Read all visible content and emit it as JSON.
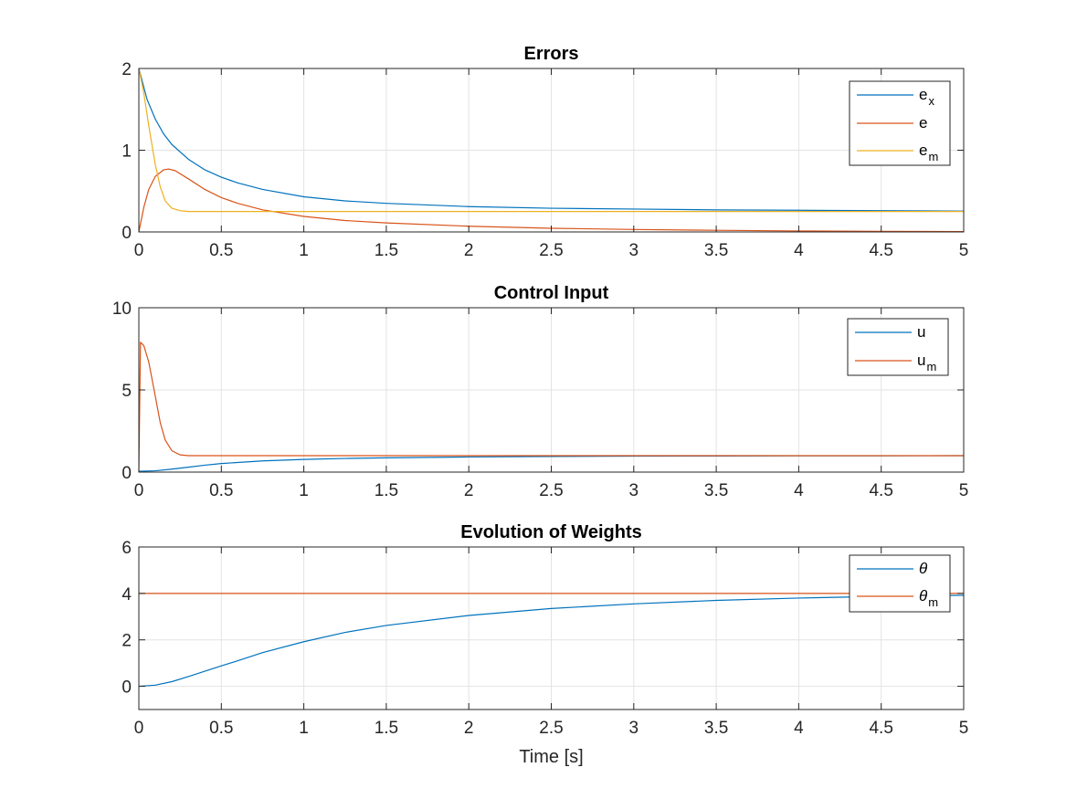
{
  "chart_data": [
    {
      "type": "line",
      "title": "Errors",
      "xlabel": "",
      "ylabel": "",
      "xlim": [
        0,
        5
      ],
      "ylim": [
        0,
        2
      ],
      "xticks": [
        "0",
        "0.5",
        "1",
        "1.5",
        "2",
        "2.5",
        "3",
        "3.5",
        "4",
        "4.5",
        "5"
      ],
      "yticks": [
        "0",
        "1",
        "2"
      ],
      "grid": true,
      "legend_position": "top-right",
      "series": [
        {
          "name": "e_x",
          "legend_base": "e",
          "legend_sub": "x",
          "color": "#0072BD",
          "x": [
            0,
            0.05,
            0.1,
            0.15,
            0.2,
            0.3,
            0.4,
            0.5,
            0.6,
            0.75,
            1,
            1.25,
            1.5,
            2,
            2.5,
            3,
            3.5,
            4,
            4.5,
            5
          ],
          "y": [
            2.0,
            1.62,
            1.38,
            1.2,
            1.07,
            0.89,
            0.76,
            0.67,
            0.6,
            0.52,
            0.43,
            0.38,
            0.35,
            0.31,
            0.29,
            0.28,
            0.27,
            0.265,
            0.26,
            0.255
          ]
        },
        {
          "name": "e",
          "legend_base": "e",
          "legend_sub": "",
          "color": "#D95319",
          "x": [
            0,
            0.03,
            0.06,
            0.1,
            0.15,
            0.18,
            0.22,
            0.3,
            0.4,
            0.5,
            0.6,
            0.75,
            1,
            1.25,
            1.5,
            2,
            2.5,
            3,
            3.5,
            4,
            4.5,
            5
          ],
          "y": [
            0,
            0.3,
            0.52,
            0.68,
            0.76,
            0.77,
            0.75,
            0.65,
            0.52,
            0.42,
            0.35,
            0.27,
            0.19,
            0.14,
            0.11,
            0.07,
            0.045,
            0.03,
            0.02,
            0.012,
            0.007,
            0.004
          ]
        },
        {
          "name": "e_m",
          "legend_base": "e",
          "legend_sub": "m",
          "color": "#EDB120",
          "x": [
            0,
            0.03,
            0.06,
            0.1,
            0.13,
            0.16,
            0.2,
            0.25,
            0.3,
            0.5,
            1,
            2,
            3,
            4,
            5
          ],
          "y": [
            2.0,
            1.7,
            1.3,
            0.82,
            0.55,
            0.38,
            0.29,
            0.26,
            0.25,
            0.25,
            0.25,
            0.25,
            0.25,
            0.25,
            0.25
          ]
        }
      ]
    },
    {
      "type": "line",
      "title": "Control Input",
      "xlabel": "",
      "ylabel": "",
      "xlim": [
        0,
        5
      ],
      "ylim": [
        0,
        10
      ],
      "xticks": [
        "0",
        "0.5",
        "1",
        "1.5",
        "2",
        "2.5",
        "3",
        "3.5",
        "4",
        "4.5",
        "5"
      ],
      "yticks": [
        "0",
        "5",
        "10"
      ],
      "grid": true,
      "legend_position": "top-right",
      "series": [
        {
          "name": "u",
          "legend_base": "u",
          "legend_sub": "",
          "color": "#0072BD",
          "x": [
            0,
            0.1,
            0.2,
            0.3,
            0.4,
            0.5,
            0.75,
            1,
            1.25,
            1.5,
            2,
            2.5,
            3,
            3.5,
            4,
            4.5,
            5
          ],
          "y": [
            0.05,
            0.08,
            0.18,
            0.3,
            0.42,
            0.52,
            0.68,
            0.77,
            0.83,
            0.87,
            0.92,
            0.95,
            0.97,
            0.98,
            0.99,
            0.99,
            1.0
          ]
        },
        {
          "name": "u_m",
          "legend_base": "u",
          "legend_sub": "m",
          "color": "#D95319",
          "x": [
            0,
            0.01,
            0.03,
            0.06,
            0.1,
            0.13,
            0.16,
            0.2,
            0.25,
            0.3,
            0.5,
            1,
            2,
            3,
            4,
            5
          ],
          "y": [
            0,
            7.9,
            7.7,
            6.7,
            4.6,
            3.0,
            1.95,
            1.3,
            1.05,
            1.0,
            1.0,
            1.0,
            1.0,
            1.0,
            1.0,
            1.0
          ]
        }
      ]
    },
    {
      "type": "line",
      "title": "Evolution of Weights",
      "xlabel": "Time [s]",
      "ylabel": "",
      "xlim": [
        0,
        5
      ],
      "ylim": [
        -1,
        6
      ],
      "xticks": [
        "0",
        "0.5",
        "1",
        "1.5",
        "2",
        "2.5",
        "3",
        "3.5",
        "4",
        "4.5",
        "5"
      ],
      "yticks": [
        "0",
        "2",
        "4",
        "6"
      ],
      "grid": true,
      "legend_position": "top-right",
      "series": [
        {
          "name": "θ",
          "legend_base": "θ",
          "legend_sub": "",
          "color": "#0072BD",
          "x": [
            0,
            0.1,
            0.2,
            0.3,
            0.4,
            0.5,
            0.6,
            0.75,
            1,
            1.25,
            1.5,
            2,
            2.5,
            3,
            3.5,
            4,
            4.5,
            5
          ],
          "y": [
            0,
            0.05,
            0.2,
            0.42,
            0.65,
            0.88,
            1.1,
            1.45,
            1.92,
            2.32,
            2.62,
            3.05,
            3.35,
            3.55,
            3.7,
            3.8,
            3.87,
            3.92
          ]
        },
        {
          "name": "θ_m",
          "legend_base": "θ",
          "legend_sub": "m",
          "color": "#D95319",
          "x": [
            0,
            5
          ],
          "y": [
            4,
            4
          ]
        }
      ]
    }
  ]
}
